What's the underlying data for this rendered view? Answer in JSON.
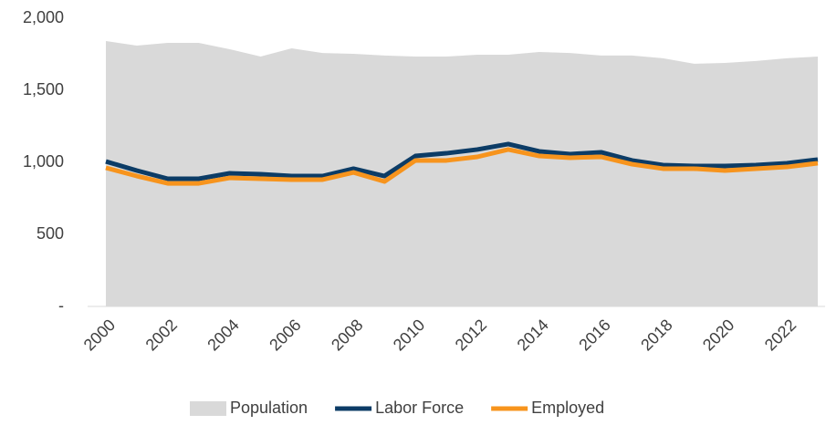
{
  "chart_data": {
    "type": "line",
    "x": [
      2000,
      2001,
      2002,
      2003,
      2004,
      2005,
      2006,
      2007,
      2008,
      2009,
      2010,
      2011,
      2012,
      2013,
      2014,
      2015,
      2016,
      2017,
      2018,
      2019,
      2020,
      2021,
      2022,
      2023
    ],
    "xlim": [
      2000,
      2023
    ],
    "xticks": [
      2000,
      2002,
      2004,
      2006,
      2008,
      2010,
      2012,
      2014,
      2016,
      2018,
      2020,
      2022
    ],
    "ylim": [
      0,
      2000
    ],
    "yticks": [
      {
        "value": 0,
        "label": "-"
      },
      500,
      {
        "value": 1000,
        "label": "1,000"
      },
      {
        "value": 1500,
        "label": "1,500"
      },
      {
        "value": 2000,
        "label": "2,000"
      }
    ],
    "grid": false,
    "legend": "bottom",
    "series": [
      {
        "name": "Population",
        "color": "#d9d9d9",
        "kind": "area",
        "values": [
          1842,
          1810,
          1829,
          1829,
          1785,
          1734,
          1791,
          1759,
          1753,
          1741,
          1734,
          1734,
          1747,
          1747,
          1766,
          1759,
          1741,
          1741,
          1722,
          1684,
          1690,
          1703,
          1722,
          1734
        ]
      },
      {
        "name": "Labor Force",
        "color": "#0c3c66",
        "kind": "line",
        "values": [
          1006,
          943,
          886,
          886,
          924,
          918,
          905,
          905,
          956,
          905,
          1044,
          1063,
          1089,
          1127,
          1076,
          1057,
          1070,
          1013,
          981,
          975,
          975,
          981,
          994,
          1019
        ]
      },
      {
        "name": "Employed",
        "color": "#f7941d",
        "kind": "line",
        "values": [
          962,
          905,
          854,
          854,
          892,
          886,
          880,
          880,
          930,
          867,
          1013,
          1013,
          1038,
          1089,
          1044,
          1032,
          1038,
          987,
          956,
          956,
          943,
          956,
          968,
          994
        ]
      }
    ]
  }
}
